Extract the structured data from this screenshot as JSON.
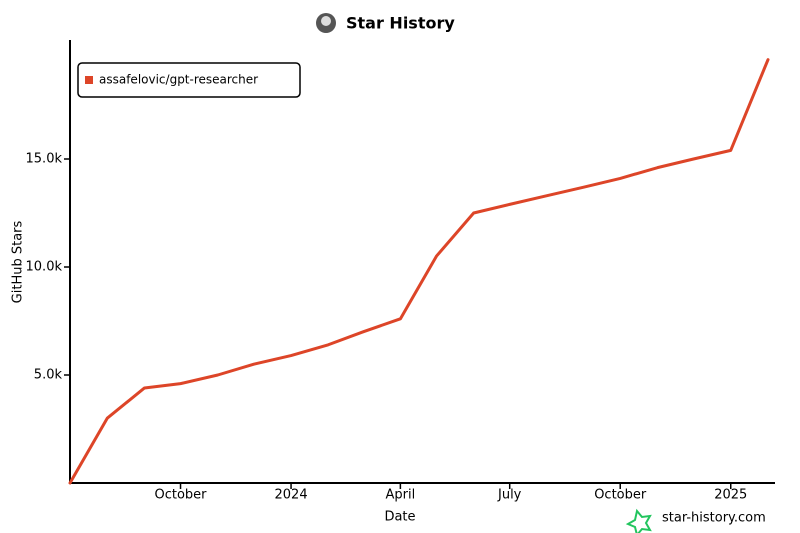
{
  "chart_data": {
    "type": "line",
    "title": "Star History",
    "x_label": "Date",
    "y_label": "GitHub Stars",
    "watermark": "star-history.com",
    "series": [
      {
        "name": "assafelovic/gpt-researcher",
        "color": "#dd4528",
        "x": [
          "2023-07",
          "2023-08",
          "2023-09",
          "2023-10",
          "2023-11",
          "2023-12",
          "2024-01",
          "2024-02",
          "2024-03",
          "2024-04",
          "2024-05",
          "2024-06",
          "2024-07",
          "2024-08",
          "2024-09",
          "2024-10",
          "2024-11",
          "2024-12",
          "2025-01",
          "2025-02"
        ],
        "values": [
          0,
          3000,
          4400,
          4600,
          5000,
          5500,
          5900,
          6400,
          7000,
          7600,
          10500,
          12500,
          12900,
          13300,
          13700,
          14100,
          14600,
          15000,
          15400,
          19600
        ]
      }
    ],
    "xlim": [
      "2023-07",
      "2025-02"
    ],
    "xticks": [
      {
        "value": "2023-10",
        "label": "October"
      },
      {
        "value": "2024-01",
        "label": "2024"
      },
      {
        "value": "2024-04",
        "label": "April"
      },
      {
        "value": "2024-07",
        "label": "July"
      },
      {
        "value": "2024-10",
        "label": "October"
      },
      {
        "value": "2025-01",
        "label": "2025"
      }
    ],
    "ylim": [
      0,
      20000
    ],
    "yticks": [
      {
        "value": 5000,
        "label": "5.0k"
      },
      {
        "value": 10000,
        "label": "10.0k"
      },
      {
        "value": 15000,
        "label": "15.0k"
      }
    ],
    "legend": "upper left"
  }
}
